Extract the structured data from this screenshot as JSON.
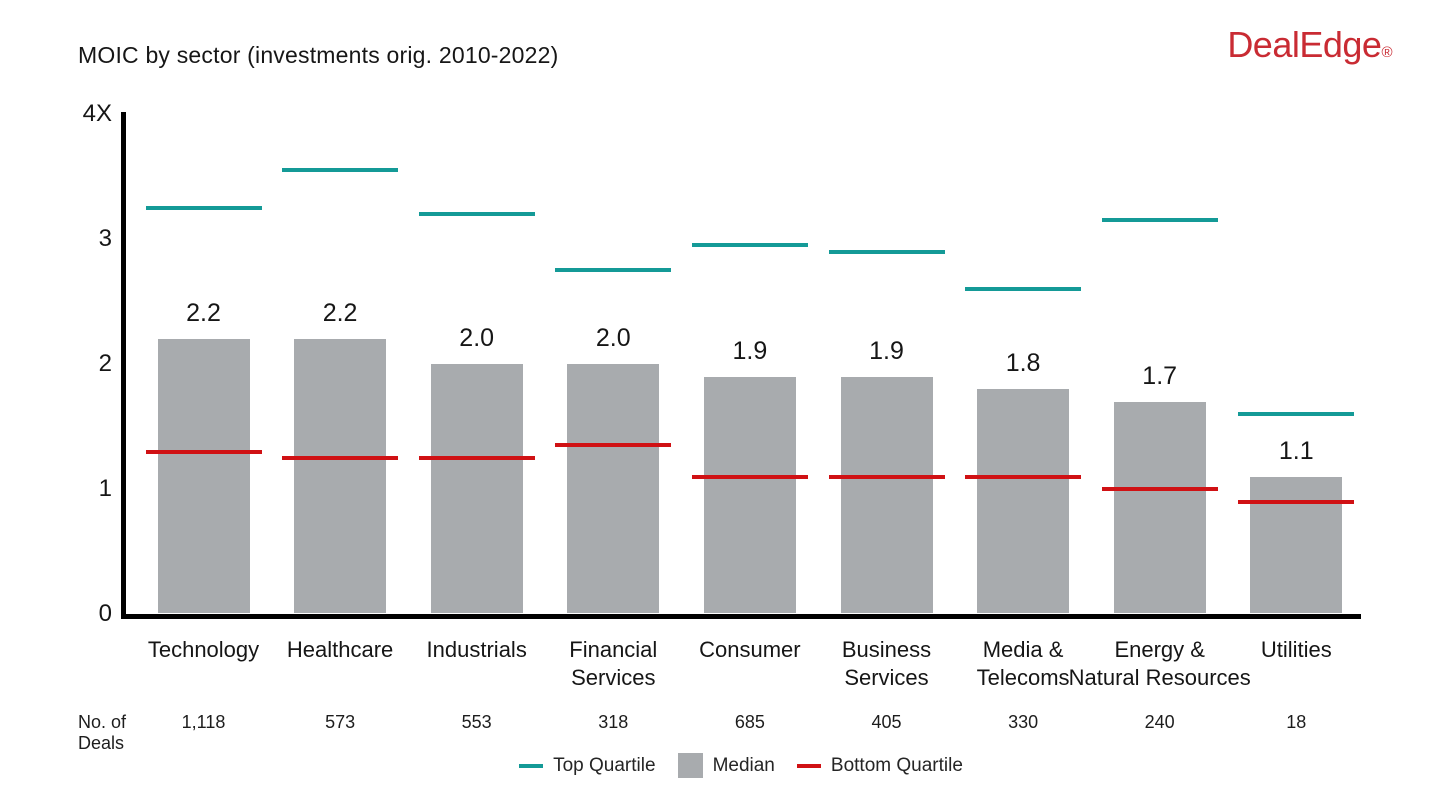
{
  "header": {
    "title": "MOIC by sector (investments orig. 2010-2022)",
    "logo_text": "DealEdge",
    "logo_registered": "®"
  },
  "colors": {
    "top_quartile": "#149a97",
    "median": "#a8abae",
    "bottom_quartile": "#d01114",
    "logo": "#c92b33",
    "axis": "#000000",
    "text": "#161616"
  },
  "y_axis": {
    "ticks": [
      "0",
      "1",
      "2",
      "3"
    ],
    "top_label": "4X",
    "min": 0,
    "max": 4
  },
  "deals_label": {
    "line1": "No. of",
    "line2": "Deals"
  },
  "legend": {
    "top_quartile_label": "Top Quartile",
    "median_label": "Median",
    "bottom_quartile_label": "Bottom Quartile"
  },
  "chart_data": {
    "type": "bar",
    "title": "MOIC by sector (investments orig. 2010-2022)",
    "categories": [
      "Technology",
      "Healthcare",
      "Industrials",
      "Financial Services",
      "Consumer",
      "Business Services",
      "Media & Telecoms",
      "Energy & Natural Resources",
      "Utilities"
    ],
    "category_label_lines": [
      [
        "Technology"
      ],
      [
        "Healthcare"
      ],
      [
        "Industrials"
      ],
      [
        "Financial",
        "Services"
      ],
      [
        "Consumer"
      ],
      [
        "Business",
        "Services"
      ],
      [
        "Media &",
        "Telecoms"
      ],
      [
        "Energy &",
        "Natural Resources"
      ],
      [
        "Utilities"
      ]
    ],
    "series": [
      {
        "name": "Top Quartile",
        "style": "dash",
        "values": [
          3.25,
          3.55,
          3.2,
          2.75,
          2.95,
          2.9,
          2.6,
          3.15,
          1.6
        ]
      },
      {
        "name": "Median",
        "style": "bar",
        "values": [
          2.2,
          2.2,
          2.0,
          2.0,
          1.9,
          1.9,
          1.8,
          1.7,
          1.1
        ],
        "labels": [
          "2.2",
          "2.2",
          "2.0",
          "2.0",
          "1.9",
          "1.9",
          "1.8",
          "1.7",
          "1.1"
        ]
      },
      {
        "name": "Bottom Quartile",
        "style": "dash",
        "values": [
          1.3,
          1.25,
          1.25,
          1.35,
          1.1,
          1.1,
          1.1,
          1.0,
          0.9
        ]
      }
    ],
    "no_of_deals": [
      "1,118",
      "573",
      "553",
      "318",
      "685",
      "405",
      "330",
      "240",
      "18"
    ],
    "ylim": [
      0,
      4
    ],
    "y_unit_suffix": "X",
    "grid": false,
    "legend_position": "bottom"
  }
}
